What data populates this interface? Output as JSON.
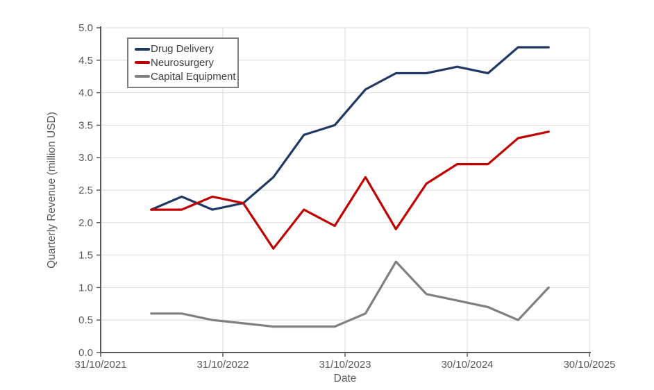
{
  "chart_data": {
    "type": "line",
    "title": "",
    "xlabel": "Date",
    "ylabel": "Quarterly Revenue (million USD)",
    "x_range": [
      "2021-10-31",
      "2025-10-30"
    ],
    "ylim": [
      0,
      5
    ],
    "grid": true,
    "legend_position": "top-left",
    "ytick_labels": [
      "0.0",
      "0.5",
      "1.0",
      "1.5",
      "2.0",
      "2.5",
      "3.0",
      "3.5",
      "4.0",
      "4.5",
      "5.0"
    ],
    "xticks": [
      {
        "date": "2021-10-31",
        "label": "31/10/2021"
      },
      {
        "date": "2022-10-31",
        "label": "31/10/2022"
      },
      {
        "date": "2023-10-31",
        "label": "31/10/2023"
      },
      {
        "date": "2024-10-30",
        "label": "30/10/2024"
      },
      {
        "date": "2025-10-30",
        "label": "30/10/2025"
      }
    ],
    "x_dates": [
      "2022-03-31",
      "2022-06-30",
      "2022-09-30",
      "2022-12-31",
      "2023-03-31",
      "2023-06-30",
      "2023-09-30",
      "2023-12-31",
      "2024-03-31",
      "2024-06-30",
      "2024-09-30",
      "2024-12-31",
      "2025-03-31",
      "2025-06-30"
    ],
    "series": [
      {
        "name": "Drug Delivery",
        "color": "#1f3864",
        "values": [
          2.2,
          2.4,
          2.2,
          2.3,
          2.7,
          3.35,
          3.5,
          4.05,
          4.3,
          4.3,
          4.4,
          4.3,
          4.7,
          4.7
        ]
      },
      {
        "name": "Neurosurgery",
        "color": "#c00000",
        "values": [
          2.2,
          2.2,
          2.4,
          2.3,
          1.6,
          2.2,
          1.95,
          2.7,
          1.9,
          2.6,
          2.9,
          2.9,
          3.3,
          3.4
        ]
      },
      {
        "name": "Capital Equipment",
        "color": "#7f7f7f",
        "values": [
          0.6,
          0.6,
          0.5,
          0.45,
          0.4,
          0.4,
          0.4,
          0.6,
          1.4,
          0.9,
          0.8,
          0.7,
          0.5,
          1.0
        ]
      }
    ]
  },
  "colors": {
    "gridline": "#d9d9d9",
    "axis": "#595959",
    "tick_text": "#595959",
    "title_text": "#595959",
    "legend_text": "#404040",
    "legend_border": "#7f7f7f",
    "background": "#ffffff"
  }
}
